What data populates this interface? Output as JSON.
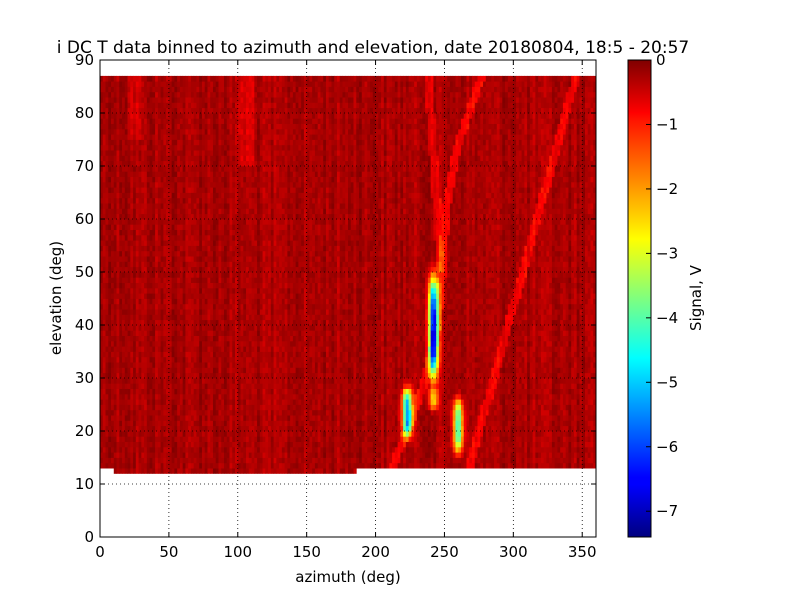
{
  "chart_data": {
    "type": "heatmap",
    "title": "i DC T data binned to azimuth and elevation, date 20180804, 18:5 - 20:57",
    "xlabel": "azimuth (deg)",
    "ylabel": "elevation (deg)",
    "xlim": [
      0,
      360
    ],
    "ylim": [
      0,
      90
    ],
    "xticks": [
      "0",
      "50",
      "100",
      "150",
      "200",
      "250",
      "300",
      "350"
    ],
    "xtick_values": [
      0,
      50,
      100,
      150,
      200,
      250,
      300,
      350
    ],
    "yticks": [
      "0",
      "10",
      "20",
      "30",
      "40",
      "50",
      "60",
      "70",
      "80",
      "90"
    ],
    "ytick_values": [
      0,
      10,
      20,
      30,
      40,
      50,
      60,
      70,
      80,
      90
    ],
    "grid": true,
    "colormap": "jet",
    "colorbar": {
      "label": "Signal, V",
      "range": [
        -7.4,
        0
      ],
      "ticks": [
        "0",
        "−1",
        "−2",
        "−3",
        "−4",
        "−5",
        "−6",
        "−7"
      ],
      "tick_values": [
        0,
        -1,
        -2,
        -3,
        -4,
        -5,
        -6,
        -7
      ]
    },
    "coverage": {
      "elevation_max": 87,
      "elevation_min_regions": [
        {
          "az_range": [
            0,
            11
          ],
          "elevation_min": 13
        },
        {
          "az_range": [
            11,
            186
          ],
          "elevation_min": 12
        },
        {
          "az_range": [
            186,
            360
          ],
          "elevation_min": 13
        }
      ]
    },
    "background_level": -0.3,
    "features": [
      {
        "az": 242,
        "el_range": [
          31,
          48
        ],
        "min_signal": -6.5
      },
      {
        "az": 223,
        "el_range": [
          20,
          27
        ],
        "min_signal": -5.3
      },
      {
        "az": 260,
        "el_range": [
          17,
          25
        ],
        "min_signal": -4.2
      },
      {
        "az": 242,
        "el_range": [
          25,
          27
        ],
        "min_signal": -2.5
      }
    ]
  }
}
